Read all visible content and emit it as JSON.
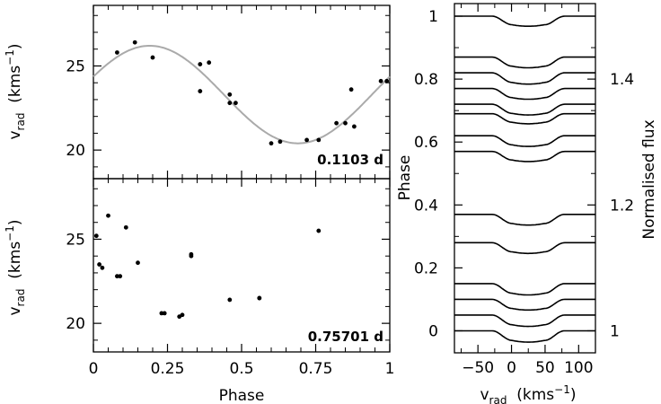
{
  "chart_data": [
    {
      "type": "scatter",
      "panel": "top-left",
      "annotation": "0.1103 d",
      "xlim": [
        0,
        1
      ],
      "ylim": [
        18.3,
        28.6
      ],
      "xticks": [
        0,
        0.25,
        0.5,
        0.75,
        1
      ],
      "yticks": [
        20,
        25
      ],
      "ylabel": {
        "main": "v",
        "sub": "rad",
        "unit_open": "  (kms",
        "sup": "−1",
        "unit_close": ")"
      },
      "fit_curve": {
        "color": "#aaaaaa",
        "mean": 23.3,
        "amplitude": 2.9,
        "phase_of_max": 0.19
      },
      "points": [
        [
          0.08,
          25.8
        ],
        [
          0.14,
          26.4
        ],
        [
          0.2,
          25.5
        ],
        [
          0.36,
          25.1
        ],
        [
          0.36,
          23.5
        ],
        [
          0.39,
          25.2
        ],
        [
          0.46,
          22.8
        ],
        [
          0.46,
          23.3
        ],
        [
          0.48,
          22.8
        ],
        [
          0.6,
          20.4
        ],
        [
          0.63,
          20.5
        ],
        [
          0.72,
          20.6
        ],
        [
          0.76,
          20.6
        ],
        [
          0.82,
          21.6
        ],
        [
          0.85,
          21.6
        ],
        [
          0.87,
          23.6
        ],
        [
          0.88,
          21.4
        ],
        [
          0.97,
          24.1
        ],
        [
          0.99,
          24.1
        ]
      ]
    },
    {
      "type": "scatter",
      "panel": "bottom-left",
      "annotation": "0.75701 d",
      "xlim": [
        0,
        1
      ],
      "ylim": [
        18.3,
        28.6
      ],
      "xticks": [
        0,
        0.25,
        0.5,
        0.75,
        1
      ],
      "xticklabels": [
        "0",
        "0.25",
        "0.5",
        "0.75",
        "1"
      ],
      "xlabel": "Phase",
      "yticks": [
        20,
        25
      ],
      "ylabel": {
        "main": "v",
        "sub": "rad",
        "unit_open": "  (kms",
        "sup": "−1",
        "unit_close": ")"
      },
      "points": [
        [
          0.01,
          25.2
        ],
        [
          0.02,
          23.5
        ],
        [
          0.03,
          23.3
        ],
        [
          0.05,
          26.4
        ],
        [
          0.08,
          22.8
        ],
        [
          0.09,
          22.8
        ],
        [
          0.11,
          25.7
        ],
        [
          0.15,
          23.6
        ],
        [
          0.23,
          20.6
        ],
        [
          0.24,
          20.6
        ],
        [
          0.29,
          20.4
        ],
        [
          0.3,
          20.5
        ],
        [
          0.33,
          24.0
        ],
        [
          0.33,
          24.1
        ],
        [
          0.46,
          21.4
        ],
        [
          0.56,
          21.5
        ],
        [
          0.56,
          21.5
        ],
        [
          0.76,
          25.5
        ]
      ]
    },
    {
      "type": "line",
      "panel": "right",
      "description_label": "Phase",
      "xlim": [
        -85,
        125
      ],
      "xticks": [
        -50,
        0,
        50,
        100
      ],
      "xticklabels": [
        "−50",
        "0",
        "50",
        "100"
      ],
      "xlabel": {
        "main": "v",
        "sub": "rad",
        "unit_open": "  (kms",
        "sup": "−1",
        "unit_close": ")"
      },
      "ylim": [
        0.965,
        1.52
      ],
      "left_axis_label": "Phase",
      "left_ticks": [
        0,
        0.2,
        0.4,
        0.6,
        0.8,
        1
      ],
      "left_ticklabels": [
        "0",
        "0.2",
        "0.4",
        "0.6",
        "0.8",
        "1"
      ],
      "right_axis_label": "Normalised flux",
      "right_ticks": [
        1,
        1.2,
        1.4
      ],
      "right_ticklabels": [
        "1",
        "1.2",
        "1.4"
      ],
      "profile_shape": {
        "center": 25,
        "fwhm_inner": 48,
        "wing": 92
      },
      "profiles": [
        {
          "phase": 0.0,
          "depth": 0.018
        },
        {
          "phase": 0.05,
          "depth": 0.018
        },
        {
          "phase": 0.1,
          "depth": 0.017
        },
        {
          "phase": 0.15,
          "depth": 0.018
        },
        {
          "phase": 0.28,
          "depth": 0.017
        },
        {
          "phase": 0.37,
          "depth": 0.017
        },
        {
          "phase": 0.57,
          "depth": 0.016
        },
        {
          "phase": 0.62,
          "depth": 0.017
        },
        {
          "phase": 0.69,
          "depth": 0.016
        },
        {
          "phase": 0.72,
          "depth": 0.017
        },
        {
          "phase": 0.77,
          "depth": 0.017
        },
        {
          "phase": 0.82,
          "depth": 0.018
        },
        {
          "phase": 0.87,
          "depth": 0.017
        },
        {
          "phase": 1.0,
          "depth": 0.016
        }
      ]
    }
  ]
}
